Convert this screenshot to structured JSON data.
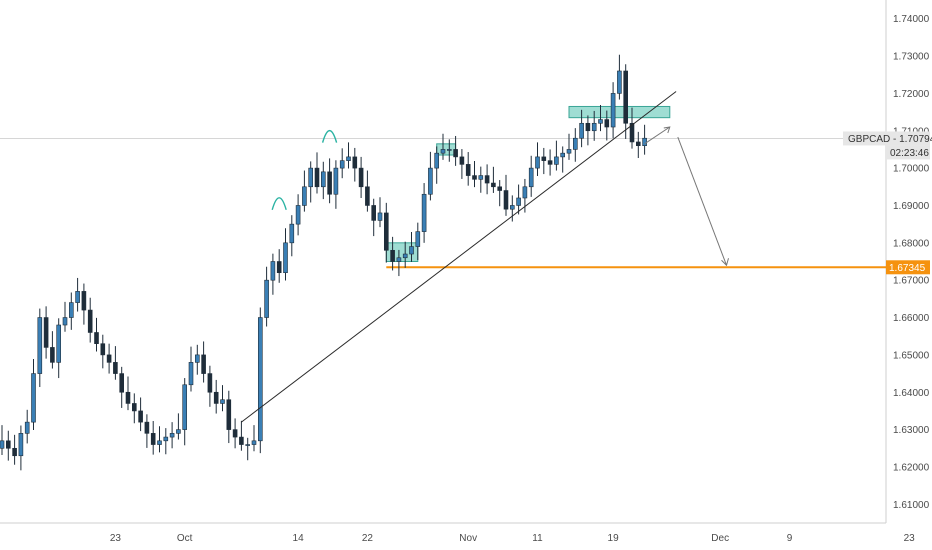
{
  "chart_data": {
    "type": "candlestick",
    "symbol_label": "GBPCAD",
    "last_price": "1.70794",
    "countdown": "02:23:46",
    "level_label": "1.67345",
    "level_value": 1.67345,
    "ylim": [
      1.605,
      1.745
    ],
    "y_ticks": [
      {
        "v": 1.74,
        "t": "1.74000"
      },
      {
        "v": 1.73,
        "t": "1.73000"
      },
      {
        "v": 1.72,
        "t": "1.72000"
      },
      {
        "v": 1.71,
        "t": "1.71000"
      },
      {
        "v": 1.7,
        "t": "1.70000"
      },
      {
        "v": 1.69,
        "t": "1.69000"
      },
      {
        "v": 1.68,
        "t": "1.68000"
      },
      {
        "v": 1.67,
        "t": "1.67000"
      },
      {
        "v": 1.66,
        "t": "1.66000"
      },
      {
        "v": 1.65,
        "t": "1.65000"
      },
      {
        "v": 1.64,
        "t": "1.64000"
      },
      {
        "v": 1.63,
        "t": "1.63000"
      },
      {
        "v": 1.62,
        "t": "1.62000"
      },
      {
        "v": 1.61,
        "t": "1.61000"
      }
    ],
    "x_ticks": [
      {
        "t": "23",
        "i": 18
      },
      {
        "t": "Oct",
        "i": 29
      },
      {
        "t": "14",
        "i": 47
      },
      {
        "t": "22",
        "i": 58
      },
      {
        "t": "Nov",
        "i": 74
      },
      {
        "t": "11",
        "i": 85
      },
      {
        "t": "19",
        "i": 97
      },
      {
        "t": "Dec",
        "i": 114
      },
      {
        "t": "9",
        "i": 125
      },
      {
        "t": "23",
        "i": 144
      }
    ],
    "closes": [
      1.627,
      1.625,
      1.623,
      1.629,
      1.632,
      1.645,
      1.66,
      1.652,
      1.648,
      1.658,
      1.66,
      1.664,
      1.667,
      1.662,
      1.656,
      1.653,
      1.65,
      1.648,
      1.645,
      1.64,
      1.637,
      1.635,
      1.632,
      1.629,
      1.626,
      1.627,
      1.628,
      1.629,
      1.63,
      1.642,
      1.648,
      1.65,
      1.645,
      1.64,
      1.637,
      1.638,
      1.63,
      1.628,
      1.626,
      1.626,
      1.627,
      1.66,
      1.67,
      1.675,
      1.672,
      1.68,
      1.685,
      1.69,
      1.695,
      1.7,
      1.695,
      1.699,
      1.693,
      1.7,
      1.702,
      1.703,
      1.7,
      1.695,
      1.69,
      1.686,
      1.688,
      1.678,
      1.675,
      1.676,
      1.677,
      1.679,
      1.683,
      1.693,
      1.7,
      1.704,
      1.705,
      1.705,
      1.703,
      1.701,
      1.698,
      1.697,
      1.698,
      1.696,
      1.695,
      1.694,
      1.689,
      1.69,
      1.692,
      1.695,
      1.7,
      1.703,
      1.702,
      1.701,
      1.703,
      1.704,
      1.705,
      1.708,
      1.712,
      1.71,
      1.712,
      1.713,
      1.711,
      1.72,
      1.726,
      1.712,
      1.707,
      1.706,
      1.708
    ],
    "pattern_boxes": [
      {
        "i0": 61,
        "i1": 66,
        "lo": 1.675,
        "hi": 1.68
      },
      {
        "i0": 69,
        "i1": 72,
        "lo": 1.7035,
        "hi": 1.7065
      },
      {
        "i0": 90,
        "i1": 106,
        "lo": 1.7135,
        "hi": 1.7165
      }
    ],
    "trendline": {
      "i0": 38,
      "v0": 1.632,
      "i1": 107,
      "v1": 1.7205
    },
    "projection": {
      "start": {
        "i": 102,
        "v": 1.7065
      },
      "mid": {
        "i": 106,
        "v": 1.711
      },
      "end": {
        "i": 115,
        "v": 1.674
      }
    },
    "arcs": [
      {
        "i": 44,
        "v": 1.6915
      },
      {
        "i": 52,
        "v": 1.7095
      }
    ],
    "colors": {
      "up": "#3a7fb5",
      "down": "#1f2d3a",
      "level": "#f5920f",
      "box": "#7fd1c4",
      "box_border": "#3aa596"
    }
  }
}
